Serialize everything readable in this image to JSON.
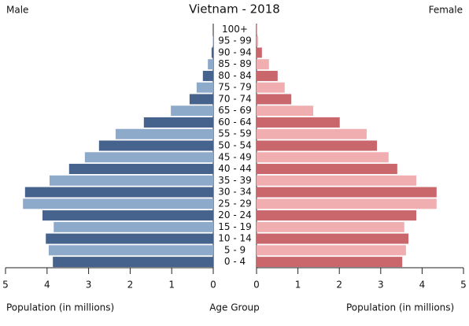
{
  "chart_data": {
    "type": "population-pyramid",
    "title": "Vietnam - 2018",
    "left_label": "Male",
    "right_label": "Female",
    "xlabel_left": "Population (in millions)",
    "xlabel_center": "Age Group",
    "xlabel_right": "Population (in millions)",
    "categories": [
      "0 - 4",
      "5 - 9",
      "10 - 14",
      "15 - 19",
      "20 - 24",
      "25 - 29",
      "30 - 34",
      "35 - 39",
      "40 - 44",
      "45 - 49",
      "50 - 54",
      "55 - 59",
      "60 - 64",
      "65 - 69",
      "70 - 74",
      "75 - 79",
      "80 - 84",
      "85 - 89",
      "90 - 94",
      "95 - 99",
      "100+"
    ],
    "series": [
      {
        "name": "Male",
        "side": "left",
        "colors": [
          "#45638c",
          "#8eaacb"
        ],
        "values": [
          3.86,
          3.96,
          4.03,
          3.84,
          4.11,
          4.58,
          4.53,
          3.94,
          3.47,
          3.09,
          2.75,
          2.35,
          1.67,
          1.02,
          0.57,
          0.4,
          0.25,
          0.13,
          0.04,
          0.01,
          0.0
        ]
      },
      {
        "name": "Female",
        "side": "right",
        "colors": [
          "#c9676d",
          "#f0aeb1"
        ],
        "values": [
          3.52,
          3.61,
          3.67,
          3.57,
          3.86,
          4.35,
          4.35,
          3.86,
          3.4,
          3.19,
          2.91,
          2.66,
          2.01,
          1.37,
          0.84,
          0.68,
          0.51,
          0.3,
          0.13,
          0.04,
          0.01
        ]
      }
    ],
    "xlim": [
      0,
      5
    ],
    "xticks": [
      0,
      1,
      2,
      3,
      4,
      5
    ]
  }
}
